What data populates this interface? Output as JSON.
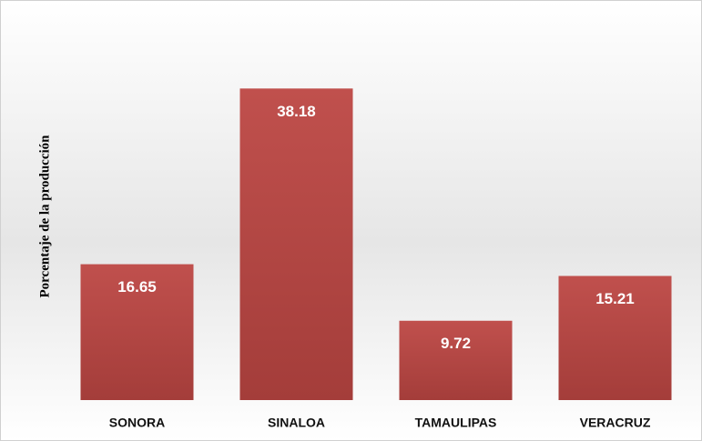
{
  "chart_data": {
    "type": "bar",
    "y_label": "Porcentaje de la producción",
    "categories": [
      "SONORA",
      "SINALOA",
      "TAMAULIPAS",
      "VERACRUZ"
    ],
    "values": [
      16.65,
      38.18,
      9.72,
      15.21
    ],
    "color": "#c0504d",
    "ylim": [
      0,
      40
    ]
  }
}
